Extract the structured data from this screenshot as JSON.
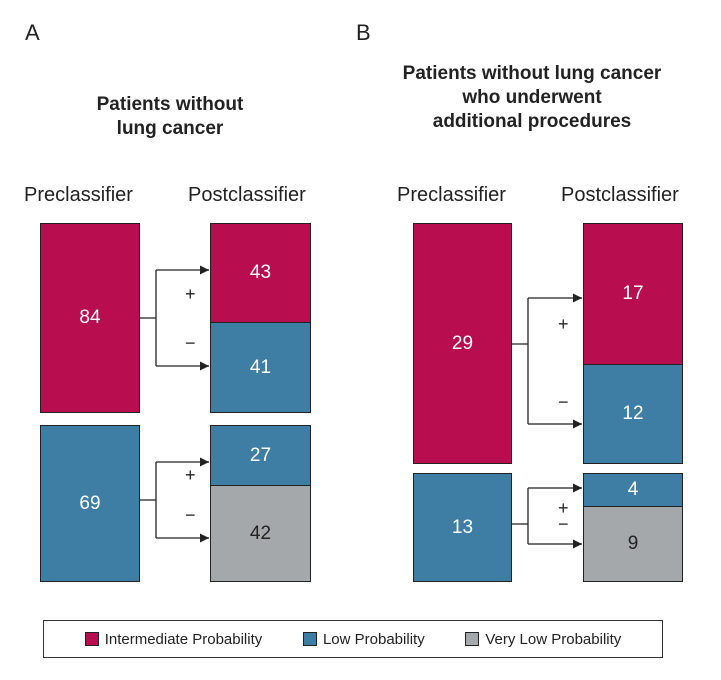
{
  "panel_a": {
    "letter": "A",
    "title_line1": "Patients without",
    "title_line2": "lung cancer",
    "pre_header": "Preclassifier",
    "post_header": "Postclassifier",
    "groups": [
      {
        "pre_value": "84",
        "pre_class": "Intermediate Probability",
        "plus_value": "43",
        "plus_class": "Intermediate Probability",
        "minus_value": "41",
        "minus_class": "Low Probability"
      },
      {
        "pre_value": "69",
        "pre_class": "Low Probability",
        "plus_value": "27",
        "plus_class": "Low Probability",
        "minus_value": "42",
        "minus_class": "Very Low Probability"
      }
    ]
  },
  "panel_b": {
    "letter": "B",
    "title_line1": "Patients without lung cancer",
    "title_line2": "who underwent",
    "title_line3": "additional procedures",
    "pre_header": "Preclassifier",
    "post_header": "Postclassifier",
    "groups": [
      {
        "pre_value": "29",
        "pre_class": "Intermediate Probability",
        "plus_value": "17",
        "plus_class": "Intermediate Probability",
        "minus_value": "12",
        "minus_class": "Low Probability"
      },
      {
        "pre_value": "13",
        "pre_class": "Low Probability",
        "plus_value": "4",
        "plus_class": "Low Probability",
        "minus_value": "9",
        "minus_class": "Very Low Probability"
      }
    ]
  },
  "signs": {
    "plus": "+",
    "minus": "−"
  },
  "legend": [
    {
      "label": "Intermediate Probability",
      "color": "#b80d4f"
    },
    {
      "label": "Low Probability",
      "color": "#3f7ea4"
    },
    {
      "label": "Very Low Probability",
      "color": "#a5a8ab"
    }
  ]
}
